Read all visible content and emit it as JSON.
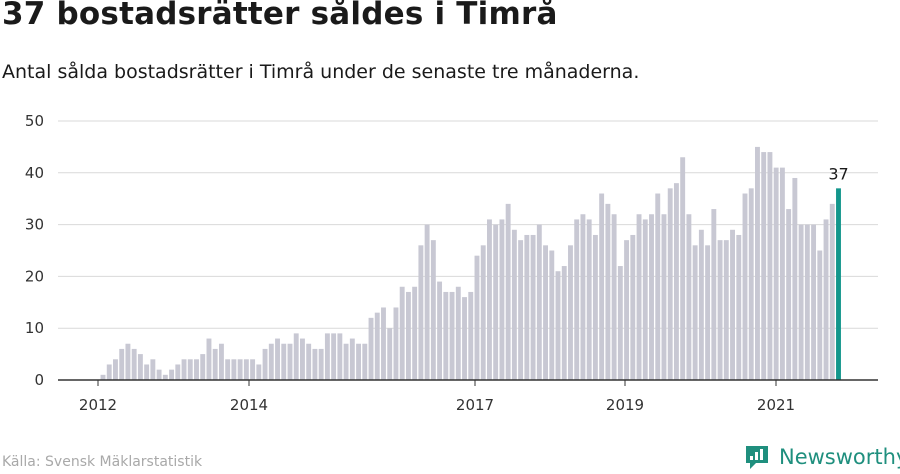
{
  "header": {
    "title": "37 bostadsrätter såldes i Timrå",
    "subtitle": "Antal sålda bostadsrätter i Timrå under de senaste tre månaderna."
  },
  "footer": {
    "source": "Källa: Svensk Mäklarstatistik",
    "brand": "Newsworthy"
  },
  "colors": {
    "bar": "#c8c8d3",
    "highlight": "#13968c",
    "grid": "#d9d9d9",
    "axis": "#333333",
    "brand": "#1f8f7e"
  },
  "icons": {
    "brand_logo": "newsworthy-logo-icon"
  },
  "chart_data": {
    "type": "bar",
    "title": "37 bostadsrätter såldes i Timrå",
    "subtitle": "Antal sålda bostadsrätter i Timrå under de senaste tre månaderna.",
    "xlabel": "",
    "ylabel": "",
    "ylim": [
      0,
      50
    ],
    "yticks": [
      0,
      10,
      20,
      30,
      40,
      50
    ],
    "x_tick_labels": [
      "2012",
      "2014",
      "2017",
      "2019",
      "2021"
    ],
    "grid": true,
    "legend": "none",
    "highlight_annotation": "37",
    "series": [
      {
        "values": [
          1,
          3,
          4,
          6,
          7,
          6,
          5,
          3,
          4,
          2,
          1,
          2,
          3,
          4,
          4,
          4,
          5,
          8,
          6,
          7,
          4,
          4,
          4,
          4,
          4,
          3,
          6,
          7,
          8,
          7,
          7,
          9,
          8,
          7,
          6,
          6,
          9,
          9,
          9,
          7,
          8,
          7,
          7,
          12,
          13,
          14,
          10,
          14,
          18,
          17,
          18,
          26,
          30,
          27,
          19,
          17,
          17,
          18,
          16,
          17,
          24,
          26,
          31,
          30,
          31,
          34,
          29,
          27,
          28,
          28,
          30,
          26,
          25,
          21,
          22,
          26,
          31,
          32,
          31,
          28,
          36,
          34,
          32,
          22,
          27,
          28,
          32,
          31,
          32,
          36,
          32,
          37,
          38,
          43,
          32,
          26,
          29,
          26,
          33,
          27,
          27,
          29,
          28,
          36,
          37,
          45,
          44,
          44,
          41,
          41,
          33,
          39,
          30,
          30,
          30,
          25,
          31,
          34,
          37
        ]
      }
    ]
  }
}
